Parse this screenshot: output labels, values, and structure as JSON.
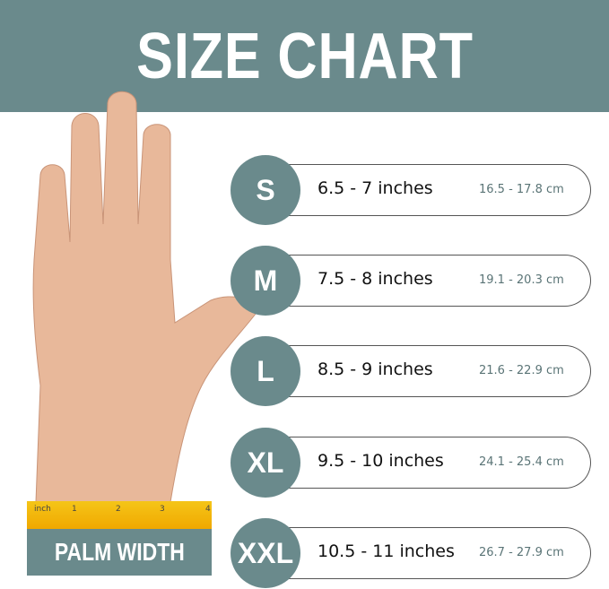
{
  "title": "SIZE CHART",
  "sizes": [
    {
      "label": "S",
      "inches": "6.5 - 7 inches",
      "cm": "16.5 - 17.8 cm"
    },
    {
      "label": "M",
      "inches": "7.5 - 8 inches",
      "cm": "19.1 - 20.3 cm"
    },
    {
      "label": "L",
      "inches": "8.5 - 9 inches",
      "cm": "21.6 - 22.9 cm"
    },
    {
      "label": "XL",
      "inches": "9.5 - 10 inches",
      "cm": "24.1 - 25.4 cm"
    },
    {
      "label": "XXL",
      "inches": "10.5 - 11 inches",
      "cm": "26.7 - 27.9 cm"
    }
  ],
  "ruler": {
    "unit": "inch",
    "ticks": [
      "1",
      "2",
      "3",
      "4"
    ]
  },
  "palm_label": "PALM WIDTH",
  "colors": {
    "accent": "#6a8a8c",
    "ruler": "#f5c518"
  }
}
